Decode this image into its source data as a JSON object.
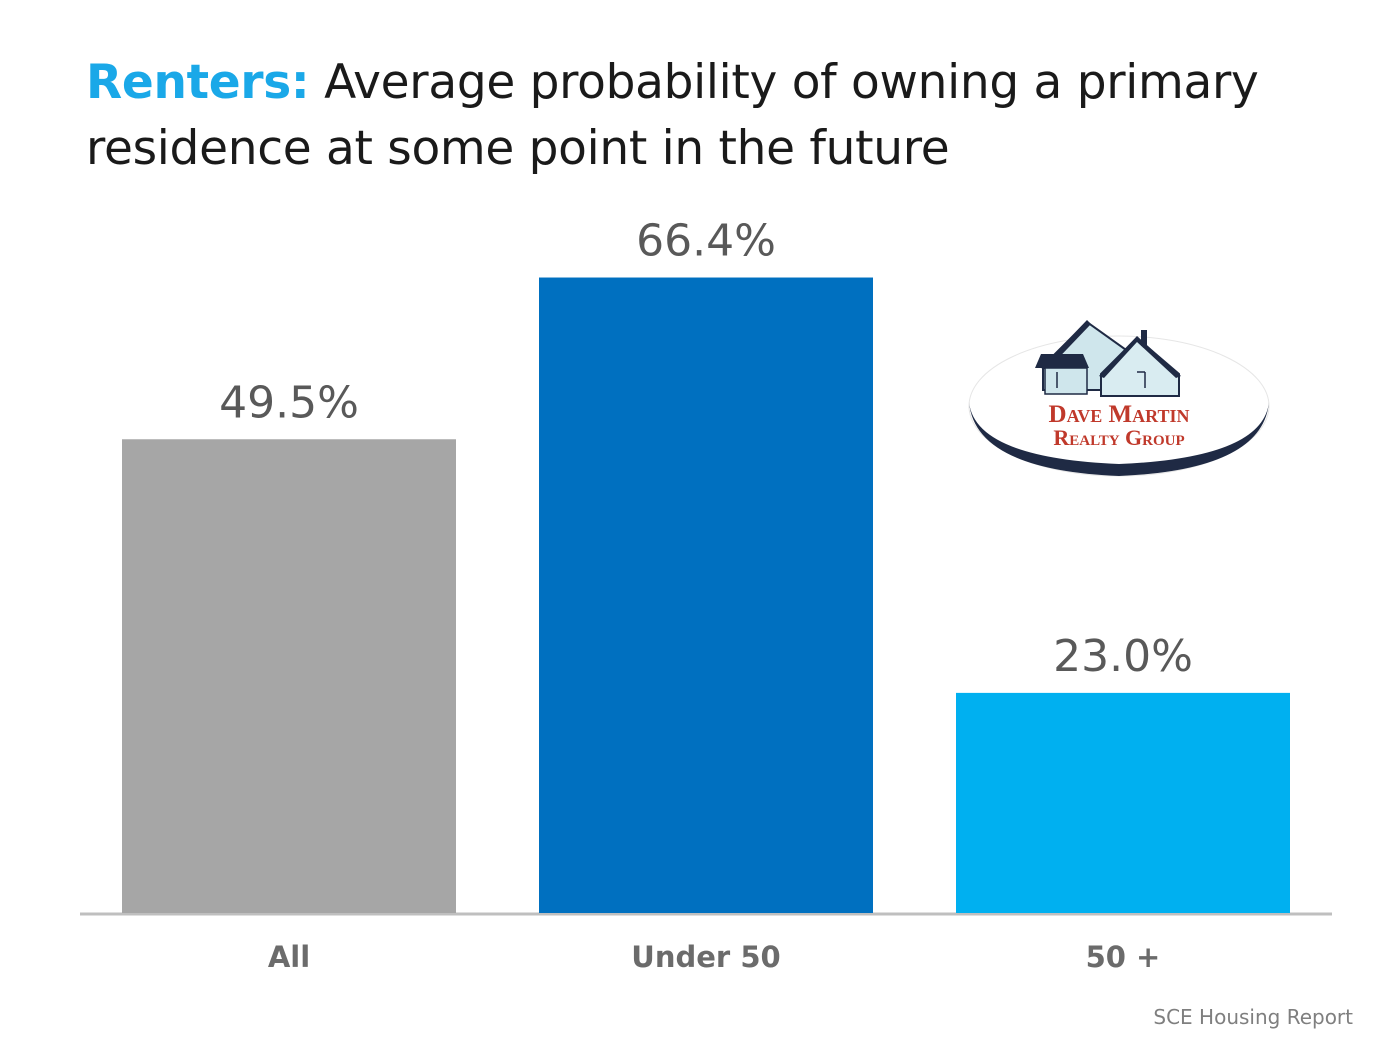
{
  "title": {
    "accent": "Renters:",
    "text": "Average probability of owning a primary residence at some point in the future"
  },
  "chart_data": {
    "type": "bar",
    "categories": [
      "All",
      "Under 50",
      "50 +"
    ],
    "values": [
      49.5,
      66.4,
      23.0
    ],
    "data_labels": [
      "49.5%",
      "66.4%",
      "23.0%"
    ],
    "colors": [
      "#a6a6a6",
      "#0070c0",
      "#00b0f0"
    ],
    "ylim": [
      0,
      74.5
    ],
    "grid": false,
    "legend": "none"
  },
  "logo": {
    "line1": "Dave Martin",
    "line2": "Realty Group",
    "text_color": "#c0392b",
    "ring_color": "#1f2a44"
  },
  "source": "SCE Housing Report"
}
